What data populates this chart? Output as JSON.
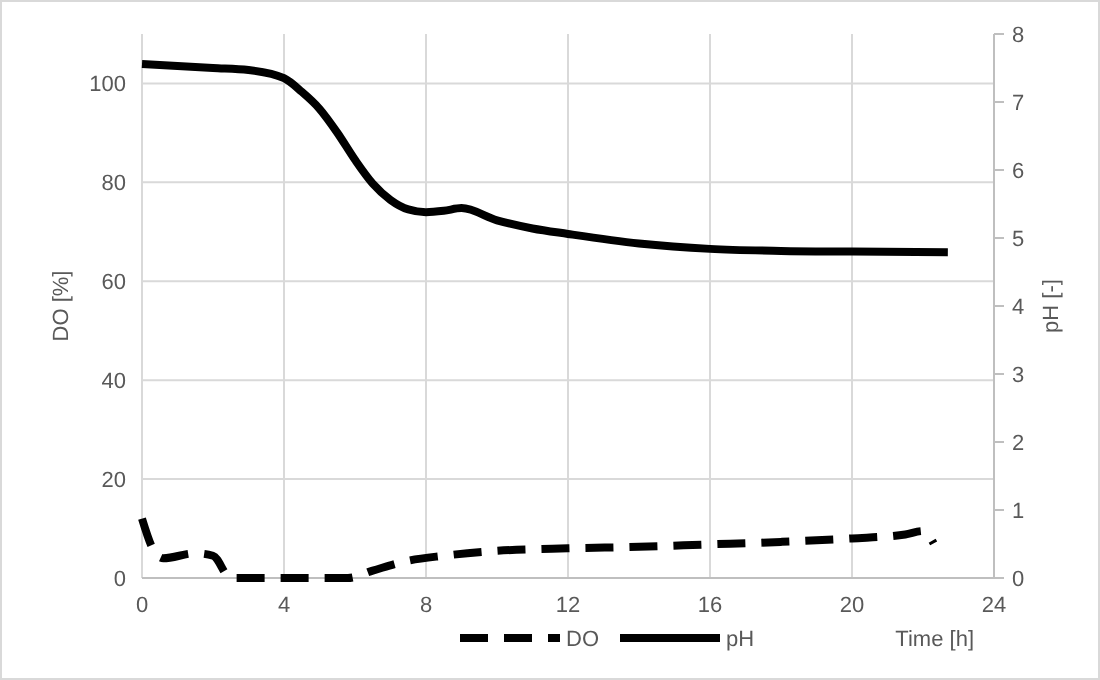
{
  "chart_data": {
    "type": "line",
    "xlabel": "Time [h]",
    "ylabel": "DO [%]",
    "y2label": "pH [-]",
    "xlim": [
      0,
      24
    ],
    "xticks": [
      0,
      4,
      8,
      12,
      16,
      20,
      24
    ],
    "ylim": [
      0,
      110
    ],
    "yticks": [
      0,
      20,
      40,
      60,
      80,
      100
    ],
    "y2lim": [
      0,
      8
    ],
    "y2ticks": [
      0,
      1,
      2,
      3,
      4,
      5,
      6,
      7,
      8
    ],
    "grid": true,
    "legend": "bottom",
    "series": [
      {
        "name": "DO",
        "color": "#000000",
        "line_style": "dashed",
        "x": [
          0,
          0.3,
          0.6,
          1.5,
          2,
          2.5,
          3,
          4,
          5,
          5.8,
          6.5,
          7.5,
          8.5,
          10,
          12,
          14,
          16,
          18,
          20,
          21.5,
          22,
          22.3
        ],
        "values": [
          12,
          6,
          4,
          5,
          4.5,
          0,
          0,
          0,
          0,
          0,
          1.5,
          3.5,
          4.5,
          5.5,
          6,
          6.3,
          6.8,
          7.3,
          8,
          8.8,
          9.5,
          7
        ]
      },
      {
        "name": "pH",
        "color": "#000000",
        "line_style": "solid",
        "axis": "y2",
        "x": [
          0,
          2,
          3,
          4,
          4.5,
          5,
          5.5,
          6,
          6.5,
          7,
          7.5,
          8,
          8.5,
          9,
          10,
          11,
          12,
          14,
          16,
          18,
          20,
          22.7
        ],
        "values": [
          7.56,
          7.5,
          7.47,
          7.35,
          7.15,
          6.9,
          6.55,
          6.15,
          5.8,
          5.56,
          5.42,
          5.38,
          5.4,
          5.44,
          5.26,
          5.14,
          5.06,
          4.92,
          4.84,
          4.81,
          4.8,
          4.79
        ]
      }
    ]
  }
}
